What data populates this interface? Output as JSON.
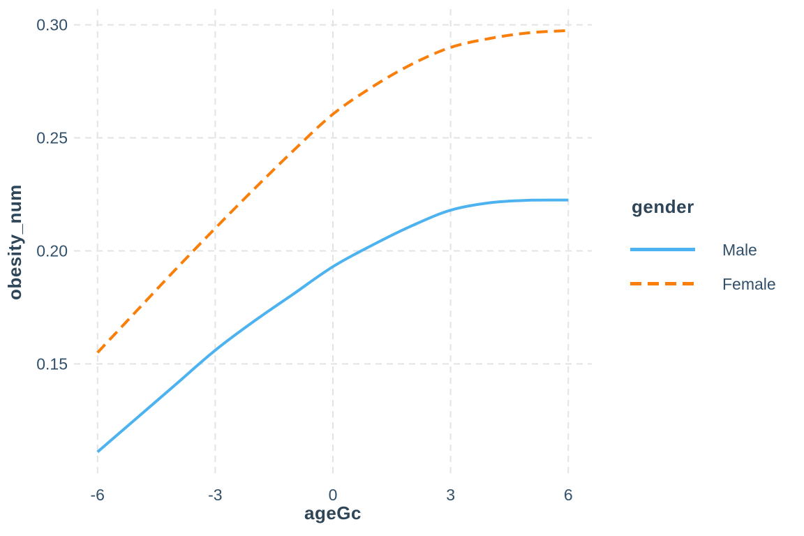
{
  "chart_data": {
    "type": "line",
    "title": "",
    "xlabel": "ageGc",
    "ylabel": "obesity_num",
    "x_ticks": [
      -6,
      -3,
      0,
      3,
      6
    ],
    "x_tick_labels": [
      "-6",
      "-3",
      "0",
      "3",
      "6"
    ],
    "y_ticks": [
      0.15,
      0.2,
      0.25,
      0.3
    ],
    "y_tick_labels": [
      "0.15",
      "0.20",
      "0.25",
      "0.30"
    ],
    "xlim": [
      -6.6,
      6.6
    ],
    "ylim": [
      0.101,
      0.307
    ],
    "grid": {
      "style": "dashed",
      "color": "#E3E3E3",
      "major_only": true
    },
    "background": "#FFFFFF",
    "text_color": "#33506B",
    "title_color": "#2E4558",
    "x": [
      -6,
      -5,
      -4,
      -3,
      -2,
      -1,
      0,
      1,
      2,
      3,
      4,
      5,
      6
    ],
    "series": [
      {
        "name": "Male",
        "color": "#4DB3F0",
        "style": "solid",
        "values": [
          0.111,
          0.126,
          0.141,
          0.156,
          0.169,
          0.181,
          0.193,
          0.2025,
          0.211,
          0.218,
          0.2213,
          0.2224,
          0.2225
        ]
      },
      {
        "name": "Female",
        "color": "#FA7E0A",
        "style": "dashed",
        "values": [
          0.155,
          0.1735,
          0.192,
          0.21,
          0.2275,
          0.2445,
          0.2605,
          0.2725,
          0.2825,
          0.29,
          0.294,
          0.2965,
          0.2975
        ]
      }
    ],
    "legend": {
      "title": "gender",
      "position": "right",
      "entries": [
        {
          "label": "Male",
          "color": "#4DB3F0",
          "dasharray": "none"
        },
        {
          "label": "Female",
          "color": "#FA7E0A",
          "dasharray": "16 9"
        }
      ]
    }
  }
}
